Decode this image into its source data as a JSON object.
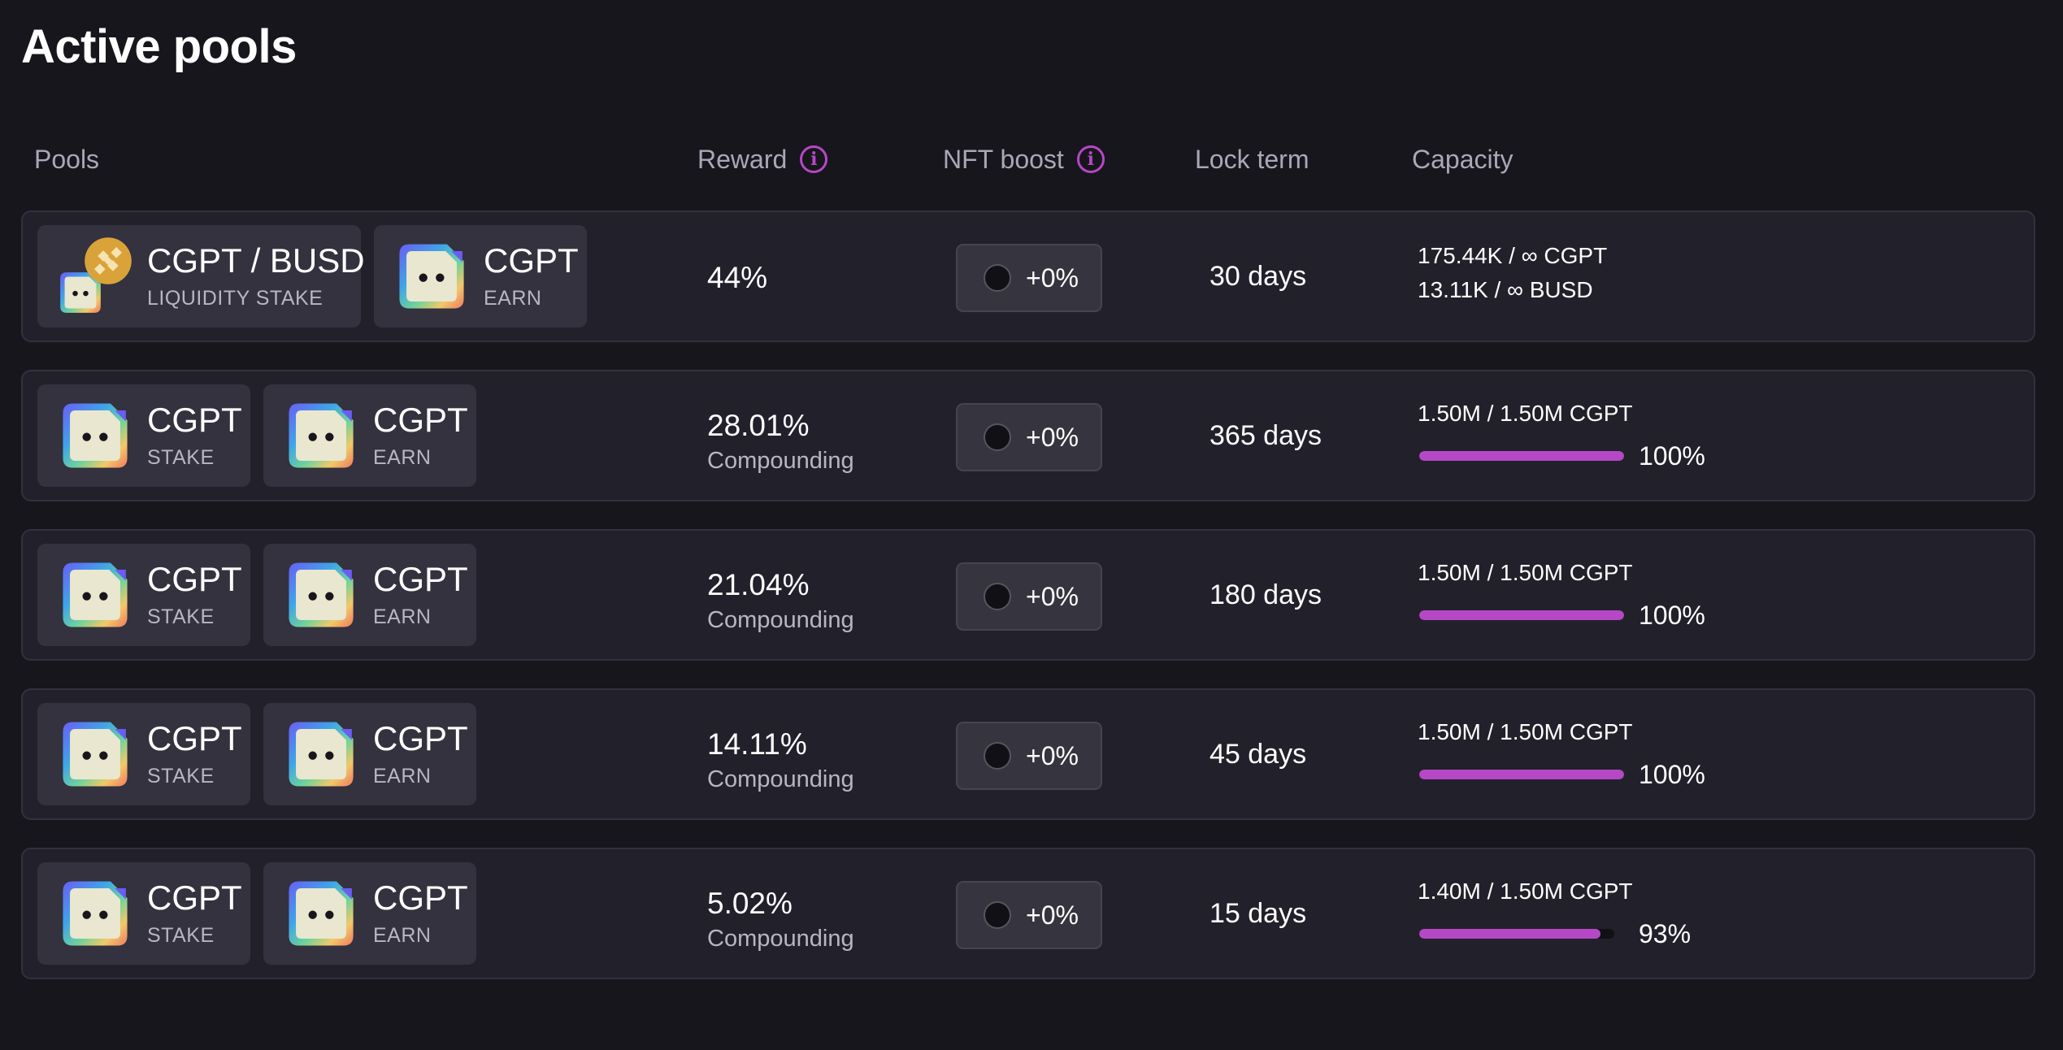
{
  "page": {
    "title": "Active pools"
  },
  "columns": {
    "pools": "Pools",
    "reward": "Reward",
    "nft_boost": "NFT boost",
    "lock_term": "Lock term",
    "capacity": "Capacity"
  },
  "icons": {
    "info": "info-icon",
    "token_logo": "cgpt-logo-icon",
    "busd_logo": "busd-coin-icon"
  },
  "colors": {
    "accent": "#b648c6",
    "background": "#17161d",
    "row": "#22212b"
  },
  "pools": [
    {
      "stake": {
        "name": "CGPT / BUSD",
        "type": "LIQUIDITY STAKE"
      },
      "earn": {
        "name": "CGPT",
        "type": "EARN"
      },
      "reward": "44%",
      "reward_note": "",
      "nft_boost": "+0%",
      "lock_term": "30 days",
      "capacity_lines": [
        "175.44K / ∞ CGPT",
        "13.11K / ∞ BUSD"
      ]
    },
    {
      "stake": {
        "name": "CGPT",
        "type": "STAKE"
      },
      "earn": {
        "name": "CGPT",
        "type": "EARN"
      },
      "reward": "28.01%",
      "reward_note": "Compounding",
      "nft_boost": "+0%",
      "lock_term": "365 days",
      "capacity_lines": [
        "1.50M / 1.50M CGPT"
      ],
      "fill_percent": 100,
      "fill_label": "100%"
    },
    {
      "stake": {
        "name": "CGPT",
        "type": "STAKE"
      },
      "earn": {
        "name": "CGPT",
        "type": "EARN"
      },
      "reward": "21.04%",
      "reward_note": "Compounding",
      "nft_boost": "+0%",
      "lock_term": "180 days",
      "capacity_lines": [
        "1.50M / 1.50M CGPT"
      ],
      "fill_percent": 100,
      "fill_label": "100%"
    },
    {
      "stake": {
        "name": "CGPT",
        "type": "STAKE"
      },
      "earn": {
        "name": "CGPT",
        "type": "EARN"
      },
      "reward": "14.11%",
      "reward_note": "Compounding",
      "nft_boost": "+0%",
      "lock_term": "45 days",
      "capacity_lines": [
        "1.50M / 1.50M CGPT"
      ],
      "fill_percent": 100,
      "fill_label": "100%"
    },
    {
      "stake": {
        "name": "CGPT",
        "type": "STAKE"
      },
      "earn": {
        "name": "CGPT",
        "type": "EARN"
      },
      "reward": "5.02%",
      "reward_note": "Compounding",
      "nft_boost": "+0%",
      "lock_term": "15 days",
      "capacity_lines": [
        "1.40M / 1.50M CGPT"
      ],
      "fill_percent": 93,
      "fill_label": "93%"
    }
  ]
}
